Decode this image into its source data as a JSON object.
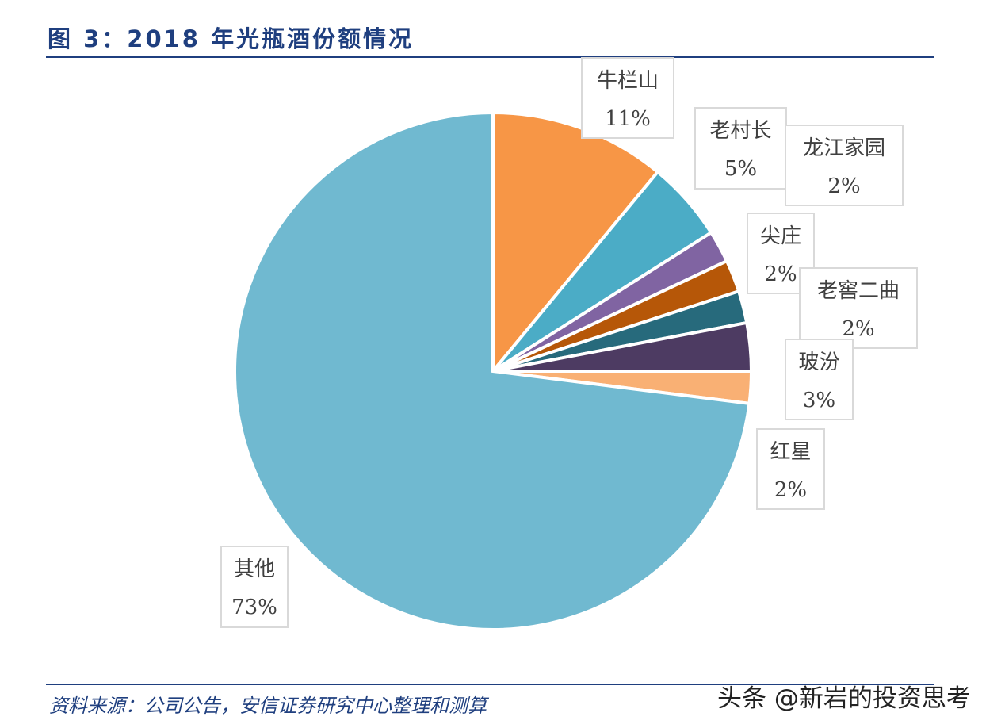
{
  "chart_data": {
    "type": "pie",
    "title": "图 3：2018 年光瓶酒份额情况",
    "start": "top",
    "direction": "clockwise",
    "slices": [
      {
        "label": "牛栏山",
        "value": 11,
        "display": "11%",
        "color": "#F79646"
      },
      {
        "label": "老村长",
        "value": 5,
        "display": "5%",
        "color": "#4BACC6"
      },
      {
        "label": "龙江家园",
        "value": 2,
        "display": "2%",
        "color": "#8064A2"
      },
      {
        "label": "尖庄",
        "value": 2,
        "display": "2%",
        "color": "#B65708"
      },
      {
        "label": "老窖二曲",
        "value": 2,
        "display": "2%",
        "color": "#276A7C"
      },
      {
        "label": "玻汾",
        "value": 3,
        "display": "3%",
        "color": "#4D3B62"
      },
      {
        "label": "红星",
        "value": 2,
        "display": "2%",
        "color": "#F9B074"
      },
      {
        "label": "其他",
        "value": 73,
        "display": "73%",
        "color": "#70B9D0"
      }
    ]
  },
  "source": "资料来源：公司公告，安信证券研究中心整理和测算",
  "watermark": "头条 @新岩的投资思考"
}
